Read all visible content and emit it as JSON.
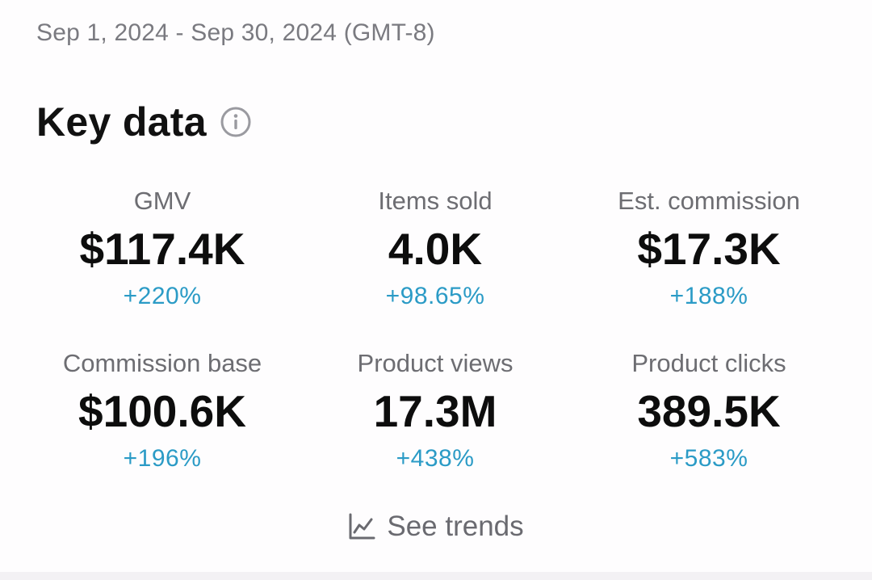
{
  "header": {
    "date_range": "Sep 1, 2024 - Sep 30, 2024 (GMT-8)"
  },
  "key_data": {
    "title": "Key data",
    "info_icon": "info-circle-icon",
    "metrics": [
      {
        "label": "GMV",
        "value": "$117.4K",
        "change": "+220%"
      },
      {
        "label": "Items sold",
        "value": "4.0K",
        "change": "+98.65%"
      },
      {
        "label": "Est. commission",
        "value": "$17.3K",
        "change": "+188%"
      },
      {
        "label": "Commission base",
        "value": "$100.6K",
        "change": "+196%"
      },
      {
        "label": "Product views",
        "value": "17.3M",
        "change": "+438%"
      },
      {
        "label": "Product clicks",
        "value": "389.5K",
        "change": "+583%"
      }
    ]
  },
  "see_trends": {
    "label": "See trends",
    "icon": "line-chart-icon"
  },
  "colors": {
    "change_positive": "#2b9bc6",
    "label_gray": "#6d6d72",
    "background": "#fefdfe"
  }
}
